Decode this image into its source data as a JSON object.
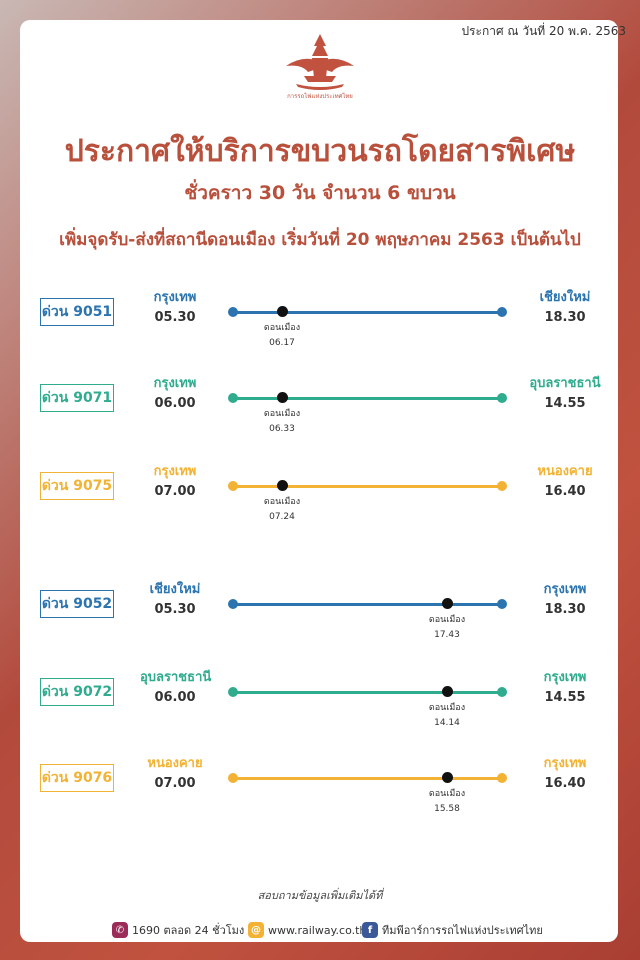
{
  "header": {
    "date": "ประกาศ ณ วันที่ 20 พ.ค. 2563",
    "logo_caption": "การรถไฟแห่งประเทศไทย"
  },
  "title": "ประกาศให้บริการขบวนรถโดยสารพิเศษ",
  "subtitle": "ชั่วคราว 30 วัน จำนวน 6 ขบวน",
  "notice": "เพิ่มจุดรับ-ส่งที่สถานีดอนเมือง เริ่มวันที่ 20 พฤษภาคม 2563 เป็นต้นไป",
  "colors": {
    "blue": "#2b74b0",
    "teal": "#2fab8e",
    "yellow": "#f2b234",
    "brand": "#b8503c"
  },
  "routes": [
    {
      "train": "ด่วน 9051",
      "color": "#2b74b0",
      "from": "กรุงเทพ",
      "depart": "05.30",
      "to": "เชียงใหม่",
      "arrive": "18.30",
      "stop": "ดอนเมือง",
      "stop_time": "06.17",
      "stop_side": "left"
    },
    {
      "train": "ด่วน 9071",
      "color": "#2fab8e",
      "from": "กรุงเทพ",
      "depart": "06.00",
      "to": "อุบลราชธานี",
      "arrive": "14.55",
      "stop": "ดอนเมือง",
      "stop_time": "06.33",
      "stop_side": "left"
    },
    {
      "train": "ด่วน 9075",
      "color": "#f2b234",
      "from": "กรุงเทพ",
      "depart": "07.00",
      "to": "หนองคาย",
      "arrive": "16.40",
      "stop": "ดอนเมือง",
      "stop_time": "07.24",
      "stop_side": "left"
    },
    {
      "train": "ด่วน 9052",
      "color": "#2b74b0",
      "from": "เชียงใหม่",
      "depart": "05.30",
      "to": "กรุงเทพ",
      "arrive": "18.30",
      "stop": "ดอนเมือง",
      "stop_time": "17.43",
      "stop_side": "right"
    },
    {
      "train": "ด่วน 9072",
      "color": "#2fab8e",
      "from": "อุบลราชธานี",
      "depart": "06.00",
      "to": "กรุงเทพ",
      "arrive": "14.55",
      "stop": "ดอนเมือง",
      "stop_time": "14.14",
      "stop_side": "right"
    },
    {
      "train": "ด่วน 9076",
      "color": "#f2b234",
      "from": "หนองคาย",
      "depart": "07.00",
      "to": "กรุงเทพ",
      "arrive": "16.40",
      "stop": "ดอนเมือง",
      "stop_time": "15.58",
      "stop_side": "right"
    }
  ],
  "footer": {
    "question": "สอบถามข้อมูลเพิ่มเติมได้ที่",
    "phone": "1690 ตลอด 24 ชั่วโมง",
    "website": "www.railway.co.th",
    "facebook": "ทีมพีอาร์การรถไฟแห่งประเทศไทย",
    "phone_icon": "phone-icon",
    "web_icon": "web-icon",
    "facebook_icon": "facebook-icon"
  }
}
